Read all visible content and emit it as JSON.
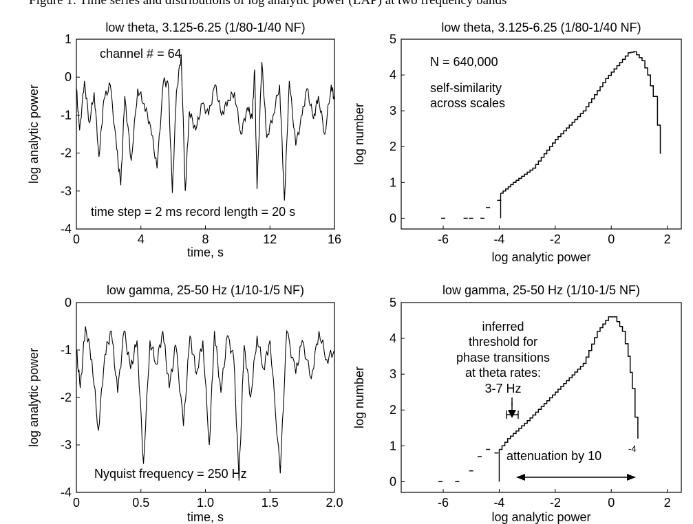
{
  "caption_fragment": "Figure 1: Time series and distributions of log analytic power (LAP) at two frequency bands",
  "chart_data": [
    {
      "id": "tl",
      "type": "line",
      "title": "low theta, 3.125-6.25 (1/80-1/40 NF)",
      "xlabel": "time, s",
      "ylabel": "log analytic power",
      "xlim": [
        0,
        16
      ],
      "ylim": [
        -4,
        1
      ],
      "xticks": [
        "0",
        "4",
        "8",
        "12",
        "16"
      ],
      "yticks": [
        "-4",
        "-3",
        "-2",
        "-1",
        "0",
        "1"
      ],
      "annotations": [
        "channel # = 64",
        "time step = 2 ms record length = 20 s"
      ],
      "baseline": -0.9,
      "points": [
        [
          0.0,
          -0.3
        ],
        [
          0.2,
          -1.4
        ],
        [
          0.5,
          -0.1
        ],
        [
          0.8,
          -1.2
        ],
        [
          1.1,
          -0.4
        ],
        [
          1.4,
          -2.1
        ],
        [
          1.7,
          -0.6
        ],
        [
          2.1,
          -0.2
        ],
        [
          2.5,
          -1.9
        ],
        [
          2.75,
          -2.85
        ],
        [
          3.0,
          -0.5
        ],
        [
          3.4,
          -2.2
        ],
        [
          3.8,
          -0.3
        ],
        [
          4.2,
          -0.7
        ],
        [
          4.6,
          -1.3
        ],
        [
          5.0,
          -2.4
        ],
        [
          5.4,
          -0.1
        ],
        [
          5.7,
          -0.2
        ],
        [
          5.95,
          -3.05
        ],
        [
          6.2,
          -0.4
        ],
        [
          6.5,
          0.6
        ],
        [
          6.75,
          -3.0
        ],
        [
          7.0,
          -0.9
        ],
        [
          7.4,
          -1.4
        ],
        [
          7.8,
          -0.7
        ],
        [
          8.2,
          -1.0
        ],
        [
          8.6,
          -0.2
        ],
        [
          9.0,
          -1.0
        ],
        [
          9.4,
          -0.6
        ],
        [
          9.8,
          -0.4
        ],
        [
          10.2,
          -1.5
        ],
        [
          10.6,
          -0.8
        ],
        [
          10.9,
          -1.1
        ],
        [
          11.05,
          0.2
        ],
        [
          11.2,
          -2.95
        ],
        [
          11.5,
          0.4
        ],
        [
          11.8,
          -1.6
        ],
        [
          12.2,
          -1.0
        ],
        [
          12.6,
          -0.2
        ],
        [
          12.9,
          -3.25
        ],
        [
          13.2,
          -0.1
        ],
        [
          13.6,
          -1.8
        ],
        [
          14.0,
          -1.0
        ],
        [
          14.3,
          -0.3
        ],
        [
          14.7,
          -1.1
        ],
        [
          15.0,
          -0.5
        ],
        [
          15.4,
          -1.5
        ],
        [
          15.8,
          -0.2
        ],
        [
          16.0,
          -0.6
        ]
      ]
    },
    {
      "id": "tr",
      "type": "histogram",
      "title": "low theta, 3.125-6.25 (1/80-1/40 NF)",
      "xlabel": "log analytic power",
      "ylabel": "log number",
      "xlim": [
        -7.5,
        2.5
      ],
      "ylim": [
        -0.3,
        5
      ],
      "xticks": [
        "-6",
        "-4",
        "-2",
        "0",
        "2"
      ],
      "yticks": [
        "0",
        "1",
        "2",
        "3",
        "4",
        "5"
      ],
      "annotations": [
        "N = 640,000",
        "self-similarity",
        "across scales"
      ],
      "left_bins": [
        [
          -6.0,
          0
        ],
        [
          -5.2,
          0
        ],
        [
          -5.0,
          0
        ],
        [
          -4.6,
          0
        ],
        [
          -4.4,
          0.3
        ],
        [
          -4.0,
          0.5
        ]
      ],
      "rise": [
        [
          -3.95,
          0.7
        ],
        [
          -3.5,
          1.0
        ],
        [
          -2.8,
          1.4
        ],
        [
          -2.0,
          2.2
        ],
        [
          -1.0,
          3.0
        ],
        [
          -0.2,
          3.9
        ],
        [
          0.6,
          4.62
        ],
        [
          0.8,
          4.65
        ]
      ],
      "fall": [
        [
          0.8,
          4.65
        ],
        [
          1.1,
          4.4
        ],
        [
          1.3,
          4.0
        ],
        [
          1.5,
          3.4
        ],
        [
          1.65,
          2.6
        ],
        [
          1.75,
          1.8
        ]
      ]
    },
    {
      "id": "bl",
      "type": "line",
      "title": "low gamma, 25-50 Hz (1/10-1/5 NF)",
      "xlabel": "time, s",
      "ylabel": "log analytic power",
      "xlim": [
        0,
        2
      ],
      "ylim": [
        -4,
        0
      ],
      "xticks": [
        "0",
        "0.5",
        "1.0",
        "1.5",
        "2.0"
      ],
      "yticks": [
        "-4",
        "-3",
        "-2",
        "-1",
        "0"
      ],
      "annotations": [
        "Nyquist frequency = 250 Hz"
      ],
      "baseline": -1.5,
      "points": [
        [
          0.0,
          -1.0
        ],
        [
          0.03,
          -1.8
        ],
        [
          0.07,
          -0.5
        ],
        [
          0.12,
          -1.2
        ],
        [
          0.17,
          -2.7
        ],
        [
          0.22,
          -1.1
        ],
        [
          0.27,
          -0.6
        ],
        [
          0.32,
          -1.9
        ],
        [
          0.37,
          -0.6
        ],
        [
          0.42,
          -1.4
        ],
        [
          0.47,
          -0.8
        ],
        [
          0.52,
          -3.4
        ],
        [
          0.57,
          -0.8
        ],
        [
          0.62,
          -1.3
        ],
        [
          0.67,
          -0.6
        ],
        [
          0.72,
          -1.8
        ],
        [
          0.77,
          -0.9
        ],
        [
          0.83,
          -2.6
        ],
        [
          0.88,
          -0.7
        ],
        [
          0.93,
          -1.5
        ],
        [
          0.98,
          -0.8
        ],
        [
          1.03,
          -3.0
        ],
        [
          1.07,
          -0.6
        ],
        [
          1.12,
          -1.9
        ],
        [
          1.17,
          -0.7
        ],
        [
          1.22,
          -1.2
        ],
        [
          1.26,
          -3.75
        ],
        [
          1.3,
          -0.9
        ],
        [
          1.35,
          -2.0
        ],
        [
          1.4,
          -0.7
        ],
        [
          1.45,
          -1.4
        ],
        [
          1.5,
          -0.8
        ],
        [
          1.58,
          -3.6
        ],
        [
          1.63,
          -0.6
        ],
        [
          1.7,
          -1.5
        ],
        [
          1.75,
          -0.8
        ],
        [
          1.82,
          -1.6
        ],
        [
          1.88,
          -0.6
        ],
        [
          1.94,
          -1.2
        ],
        [
          2.0,
          -1.0
        ]
      ]
    },
    {
      "id": "br",
      "type": "histogram",
      "title": "low gamma, 25-50 Hz (1/10-1/5 NF)",
      "xlabel": "log analytic power",
      "ylabel": "log number",
      "xlim": [
        -7.5,
        2.5
      ],
      "ylim": [
        -0.3,
        5
      ],
      "xticks": [
        "-6",
        "-4",
        "-2",
        "0",
        "2"
      ],
      "yticks": [
        "0",
        "1",
        "2",
        "3",
        "4",
        "5"
      ],
      "annotations": [
        "inferred",
        "threshold for",
        "phase transitions",
        "at theta rates:",
        "3-7 Hz",
        "attenuation by 10",
        "-4"
      ],
      "left_bins": [
        [
          -6.1,
          0
        ],
        [
          -5.5,
          0
        ],
        [
          -5.0,
          0.3
        ],
        [
          -4.7,
          0.7
        ],
        [
          -4.4,
          0.9
        ],
        [
          -4.1,
          0.8
        ]
      ],
      "rise": [
        [
          -4.0,
          0.9
        ],
        [
          -3.7,
          1.2
        ],
        [
          -3.0,
          1.7
        ],
        [
          -2.0,
          2.5
        ],
        [
          -1.0,
          3.3
        ],
        [
          -0.5,
          4.2
        ],
        [
          -0.1,
          4.6
        ],
        [
          0.1,
          4.6
        ]
      ],
      "fall": [
        [
          0.1,
          4.6
        ],
        [
          0.4,
          4.2
        ],
        [
          0.6,
          3.5
        ],
        [
          0.75,
          2.6
        ],
        [
          0.85,
          1.8
        ],
        [
          0.95,
          1.2
        ]
      ]
    }
  ]
}
